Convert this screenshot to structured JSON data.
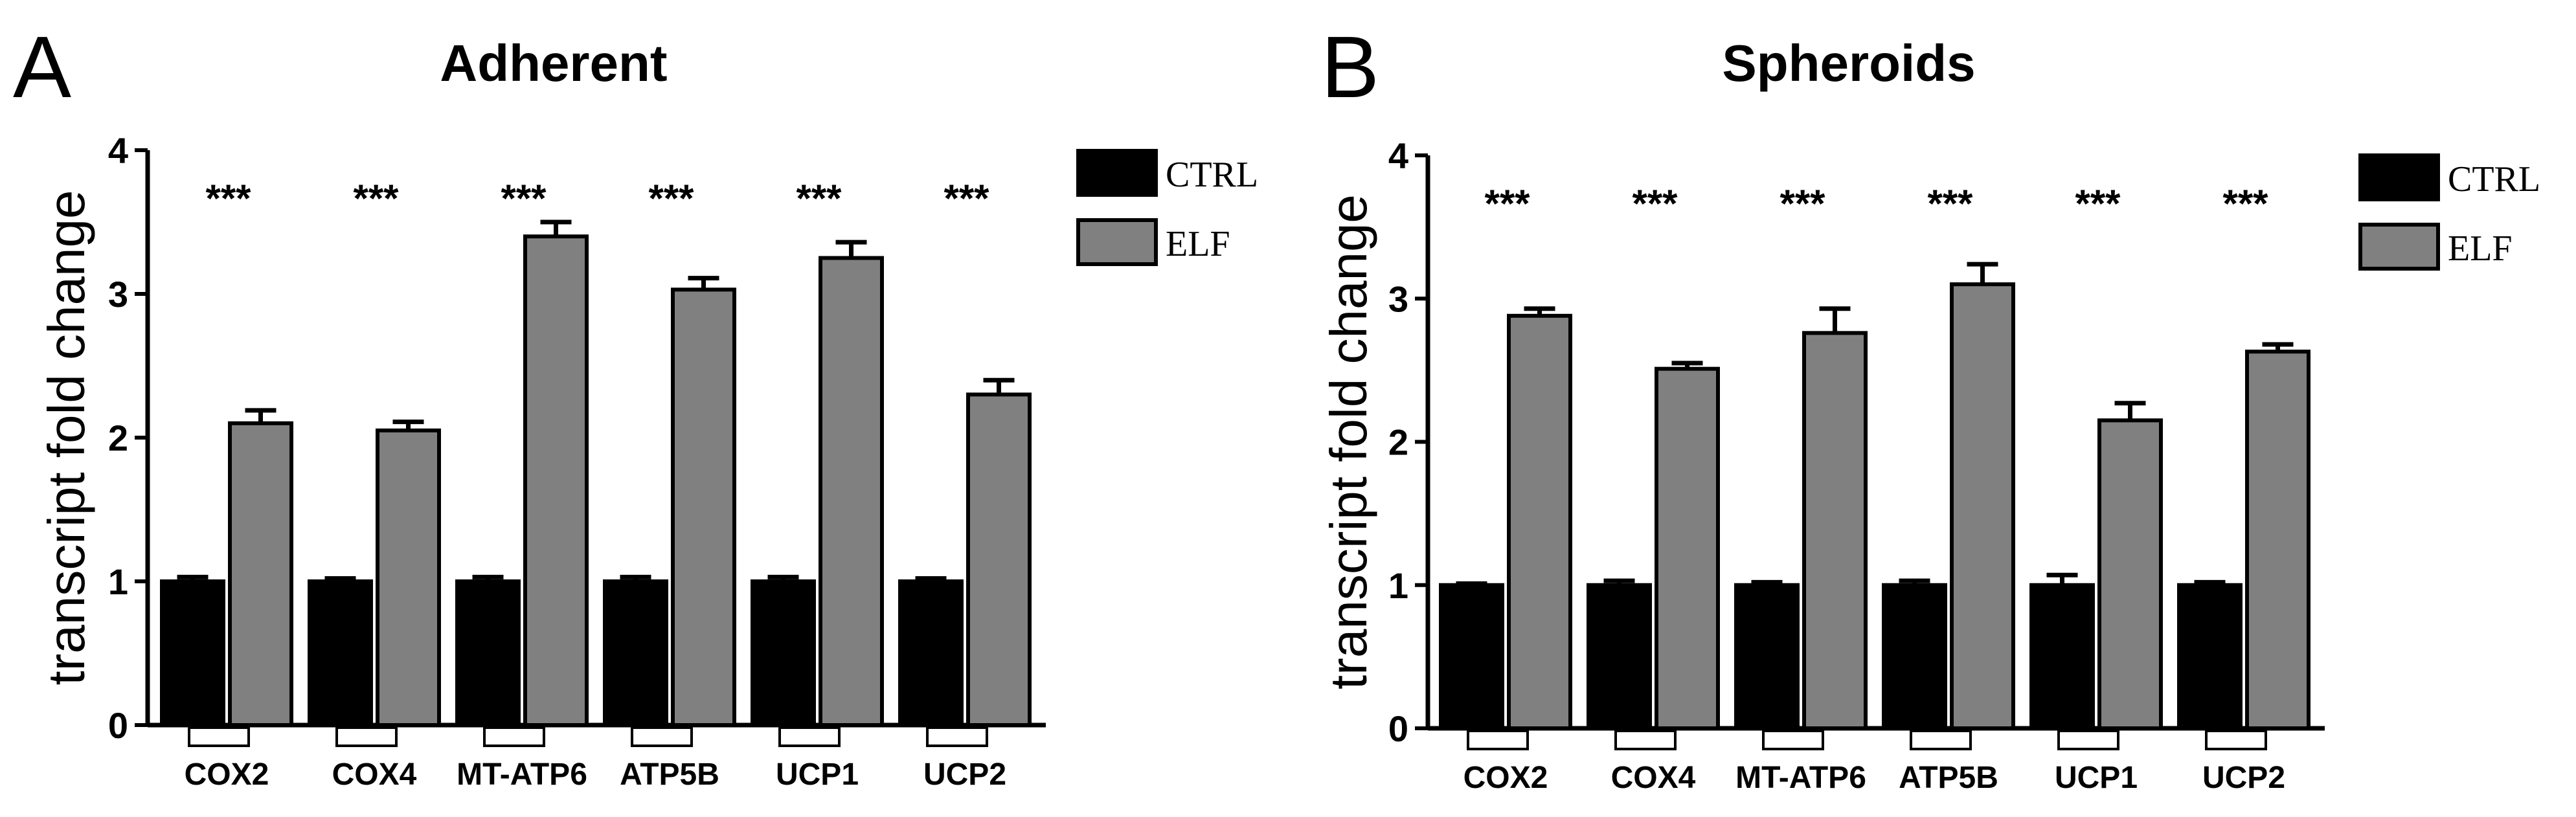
{
  "colors": {
    "ctrl": "#000000",
    "elf": "#808080",
    "axis": "#000000"
  },
  "chart_data": [
    {
      "type": "bar",
      "panel": "A",
      "title": "Adherent",
      "xlabel": "",
      "ylabel": "transcript fold change",
      "ylim": [
        0,
        4
      ],
      "yticks": [
        "0",
        "1",
        "2",
        "3",
        "4"
      ],
      "categories": [
        "COX2",
        "COX4",
        "MT-ATP6",
        "ATP5B",
        "UCP1",
        "UCP2"
      ],
      "series": [
        {
          "name": "CTRL",
          "values": [
            1.0,
            1.0,
            1.0,
            1.0,
            1.0,
            1.0
          ],
          "errors": [
            0.03,
            0.02,
            0.03,
            0.03,
            0.03,
            0.02
          ]
        },
        {
          "name": "ELF",
          "values": [
            2.1,
            2.05,
            3.4,
            3.03,
            3.25,
            2.3
          ],
          "errors": [
            0.09,
            0.06,
            0.1,
            0.08,
            0.11,
            0.1
          ]
        }
      ],
      "significance": [
        "***",
        "***",
        "***",
        "***",
        "***",
        "***"
      ],
      "legend": "top-right",
      "grid": false
    },
    {
      "type": "bar",
      "panel": "B",
      "title": "Spheroids",
      "xlabel": "",
      "ylabel": "transcript fold change",
      "ylim": [
        0,
        4
      ],
      "yticks": [
        "0",
        "1",
        "2",
        "3",
        "4"
      ],
      "categories": [
        "COX2",
        "COX4",
        "MT-ATP6",
        "ATP5B",
        "UCP1",
        "UCP2"
      ],
      "series": [
        {
          "name": "CTRL",
          "values": [
            1.0,
            1.0,
            1.0,
            1.0,
            1.0,
            1.0
          ],
          "errors": [
            0.01,
            0.03,
            0.02,
            0.03,
            0.07,
            0.02
          ]
        },
        {
          "name": "ELF",
          "values": [
            2.88,
            2.51,
            2.76,
            3.1,
            2.15,
            2.63
          ],
          "errors": [
            0.05,
            0.04,
            0.17,
            0.14,
            0.12,
            0.05
          ]
        }
      ],
      "significance": [
        "***",
        "***",
        "***",
        "***",
        "***",
        "***"
      ],
      "legend": "top-right",
      "grid": false
    }
  ]
}
